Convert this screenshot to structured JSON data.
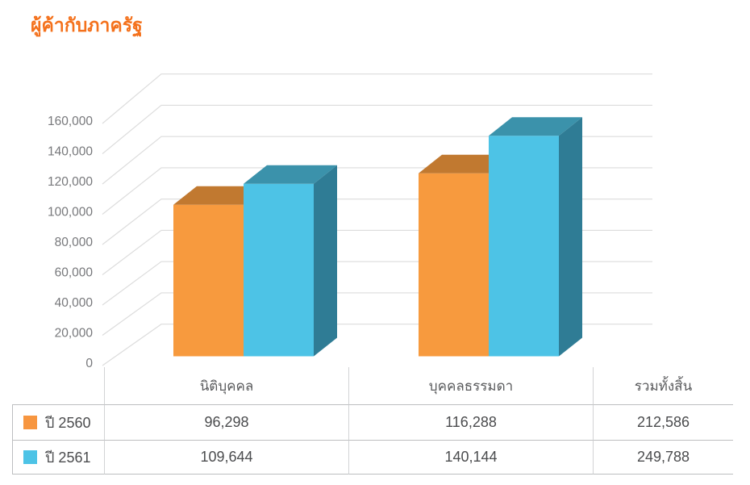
{
  "title": "ผู้ค้ากับภาครัฐ",
  "colors": {
    "title": "#F4711C",
    "grid": "#DCDCDC",
    "axis_label": "#77787B",
    "header_text": "#595A5C",
    "table_text": "#4B4C4E",
    "border_outer": "#BDBEC0",
    "border_inner": "#D2D3D5",
    "series_2560": "#F79A3E",
    "series_2561": "#4DC3E6"
  },
  "chart_data": {
    "type": "bar",
    "variant": "3d-clustered-column",
    "title": "ผู้ค้ากับภาครัฐ",
    "categories": [
      "นิติบุคคล",
      "บุคคลธรรมดา"
    ],
    "series": [
      {
        "name": "ปี 2560",
        "values": [
          96298,
          116288
        ],
        "total": 212586,
        "faces": {
          "front": "#F79A3E",
          "top": "#C17930",
          "side": "#B06C24"
        }
      },
      {
        "name": "ปี 2561",
        "values": [
          109644,
          140144
        ],
        "total": 249788,
        "faces": {
          "front": "#4DC3E6",
          "top": "#3B92AB",
          "side": "#2F7C95"
        }
      }
    ],
    "xlabel": "",
    "ylabel": "",
    "ylim": [
      0,
      160000
    ],
    "ytick_step": 20000,
    "yticks": [
      "0",
      "20,000",
      "40,000",
      "60,000",
      "80,000",
      "100,000",
      "120,000",
      "140,000",
      "160,000"
    ],
    "grid": true,
    "legend_position": "table-left"
  },
  "table": {
    "columns": [
      "นิติบุคคล",
      "บุคคลธรรมดา",
      "รวมทั้งสิ้น"
    ],
    "rows": [
      {
        "legend": "ปี 2560",
        "swatch": "#F79640",
        "values": [
          "96,298",
          "116,288",
          "212,586"
        ]
      },
      {
        "legend": "ปี 2561",
        "swatch": "#4DC3E6",
        "values": [
          "109,644",
          "140,144",
          "249,788"
        ]
      }
    ]
  }
}
